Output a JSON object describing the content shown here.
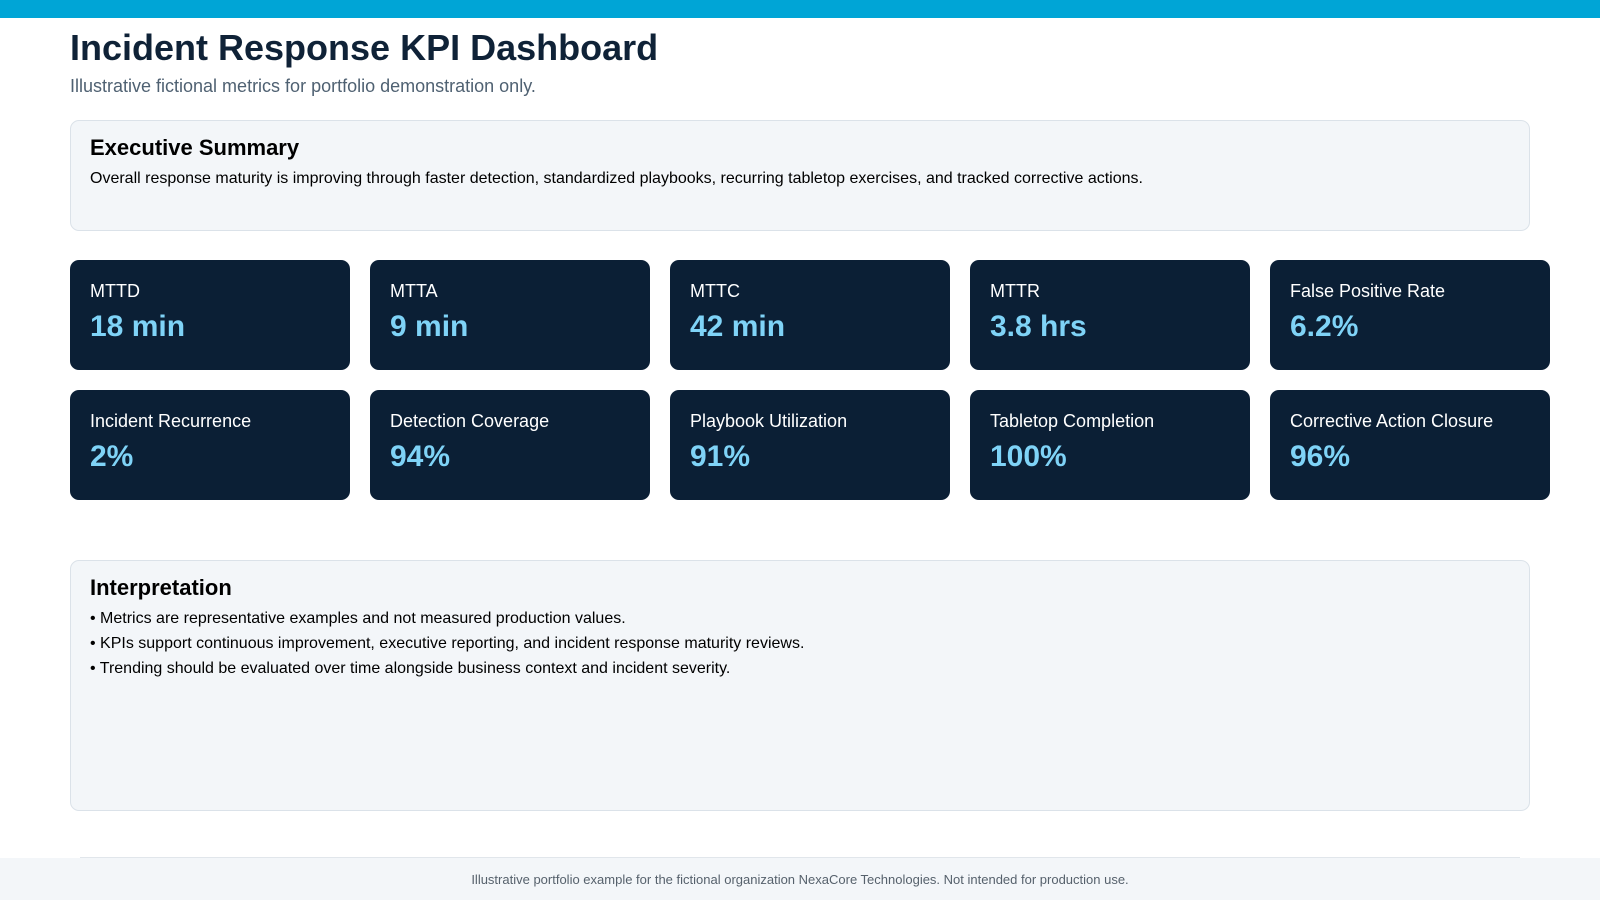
{
  "header": {
    "title": "Incident Response KPI Dashboard",
    "subtitle": "Illustrative fictional metrics for portfolio demonstration only."
  },
  "summary": {
    "heading": "Executive Summary",
    "text": "Overall response maturity is improving through faster detection, standardized playbooks, recurring tabletop exercises, and tracked corrective actions."
  },
  "kpis": [
    {
      "label": "MTTD",
      "value": "18 min"
    },
    {
      "label": "MTTA",
      "value": "9 min"
    },
    {
      "label": "MTTC",
      "value": "42 min"
    },
    {
      "label": "MTTR",
      "value": "3.8 hrs"
    },
    {
      "label": "False Positive Rate",
      "value": "6.2%"
    },
    {
      "label": "Incident Recurrence",
      "value": "2%"
    },
    {
      "label": "Detection Coverage",
      "value": "94%"
    },
    {
      "label": "Playbook Utilization",
      "value": "91%"
    },
    {
      "label": "Tabletop Completion",
      "value": "100%"
    },
    {
      "label": "Corrective Action Closure",
      "value": "96%"
    }
  ],
  "interpretation": {
    "heading": "Interpretation",
    "items": [
      "Metrics are representative examples and not measured production values.",
      "KPIs support continuous improvement, executive reporting, and incident response maturity reviews.",
      "Trending should be evaluated over time alongside business context and incident severity."
    ]
  },
  "footer": {
    "text": "Illustrative portfolio example for the fictional organization NexaCore Technologies. Not intended for production use."
  },
  "colors": {
    "accent_bar": "#00a5d6",
    "card_background": "#0b1f35",
    "kpi_value": "#7fd3f7",
    "title": "#0f2237"
  }
}
